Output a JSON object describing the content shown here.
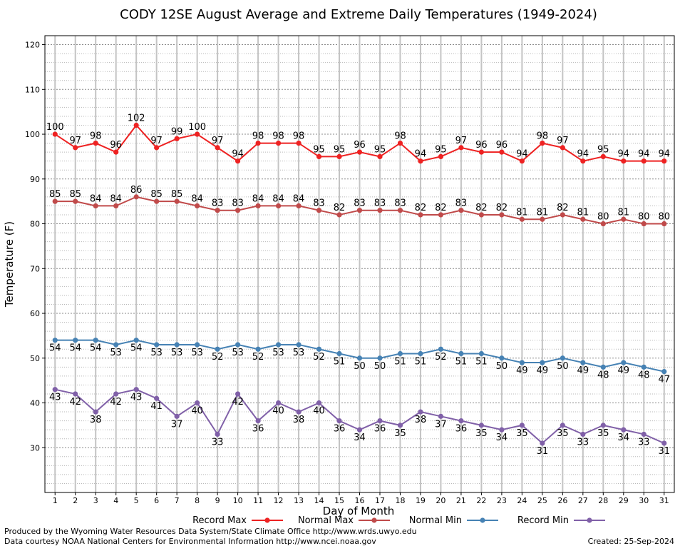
{
  "chart_data": {
    "type": "line",
    "title": "CODY 12SE August Average and Extreme Daily Temperatures (1949-2024)",
    "xlabel": "Day of Month",
    "ylabel": "Temperature (F)",
    "x": [
      1,
      2,
      3,
      4,
      5,
      6,
      7,
      8,
      9,
      10,
      11,
      12,
      13,
      14,
      15,
      16,
      17,
      18,
      19,
      20,
      21,
      22,
      23,
      24,
      25,
      26,
      27,
      28,
      29,
      30,
      31
    ],
    "xlim": [
      0.5,
      31.5
    ],
    "ylim": [
      20,
      122
    ],
    "yticks": [
      30,
      40,
      50,
      60,
      70,
      80,
      90,
      100,
      110,
      120
    ],
    "grid": true,
    "legend_position": "bottom",
    "series": [
      {
        "name": "Record Max",
        "color": "#ee2222",
        "label_pos": "above",
        "values": [
          100,
          97,
          98,
          96,
          102,
          97,
          99,
          100,
          97,
          94,
          98,
          98,
          98,
          95,
          95,
          96,
          95,
          98,
          94,
          95,
          97,
          96,
          96,
          94,
          98,
          97,
          94,
          95,
          94,
          94,
          94
        ]
      },
      {
        "name": "Normal Max",
        "color": "#c04a4a",
        "label_pos": "above",
        "values": [
          85,
          85,
          84,
          84,
          86,
          85,
          85,
          84,
          83,
          83,
          84,
          84,
          84,
          83,
          82,
          83,
          83,
          83,
          82,
          82,
          83,
          82,
          82,
          81,
          81,
          82,
          81,
          80,
          81,
          80,
          80
        ]
      },
      {
        "name": "Normal Min",
        "color": "#4682b4",
        "label_pos": "below",
        "values": [
          54,
          54,
          54,
          53,
          54,
          53,
          53,
          53,
          52,
          53,
          52,
          53,
          53,
          52,
          51,
          50,
          50,
          51,
          51,
          52,
          51,
          51,
          50,
          49,
          49,
          50,
          49,
          48,
          49,
          48,
          47
        ]
      },
      {
        "name": "Record Min",
        "color": "#8060a8",
        "label_pos": "below",
        "values": [
          43,
          42,
          38,
          42,
          43,
          41,
          37,
          40,
          33,
          42,
          36,
          40,
          38,
          40,
          36,
          34,
          36,
          35,
          38,
          37,
          36,
          35,
          34,
          35,
          31,
          35,
          33,
          35,
          34,
          33,
          31
        ]
      }
    ]
  },
  "footer": {
    "produced_by": "Produced by the Wyoming Water Resources Data System/State Climate Office http://www.wrds.uwyo.edu",
    "courtesy": "Data courtesy NOAA National Centers for Environmental Information http://www.ncei.noaa.gov",
    "created": "Created:  25-Sep-2024"
  }
}
